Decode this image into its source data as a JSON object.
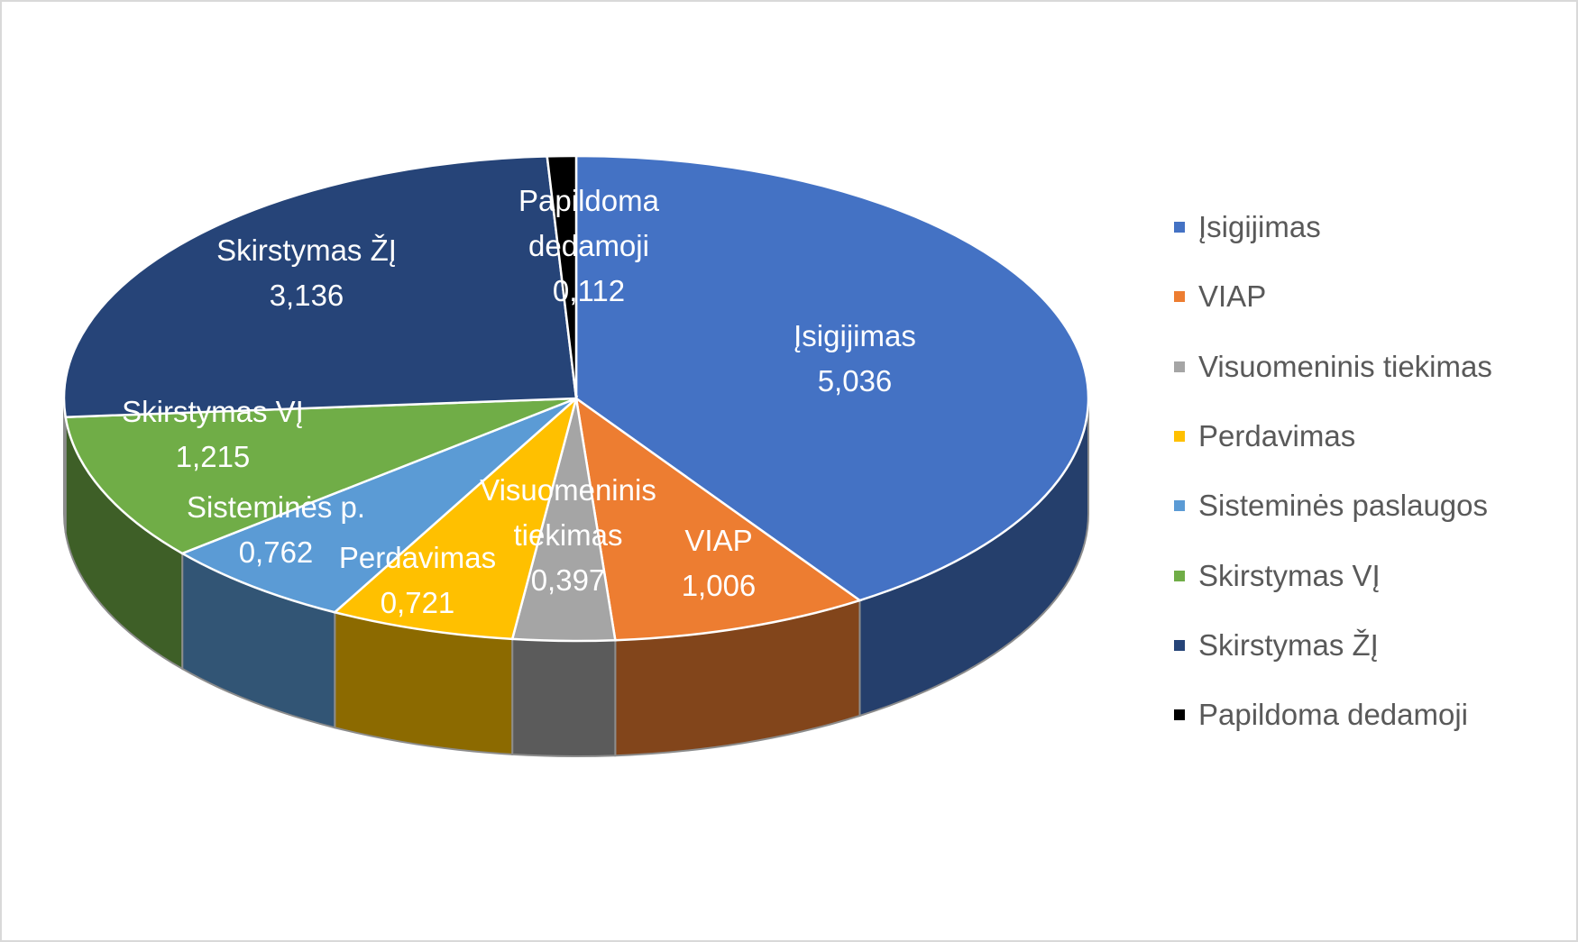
{
  "chart_data": {
    "type": "pie3d",
    "categories": [
      "Įsigijimas",
      "VIAP",
      "Visuomeninis tiekimas",
      "Perdavimas",
      "Sisteminės paslaugos",
      "Skirstymas VĮ",
      "Skirstymas ŽĮ",
      "Papildoma dedamoji"
    ],
    "slice_labels": [
      "Įsigijimas",
      "VIAP",
      "Visuomeninis tiekimas",
      "Perdavimas",
      "Sisteminės p.",
      "Skirstymas VĮ",
      "Skirstymas ŽĮ",
      "Papildoma dedamoji"
    ],
    "values": [
      5.036,
      1.006,
      0.397,
      0.721,
      0.762,
      1.215,
      3.136,
      0.112
    ],
    "value_labels": [
      "5,036",
      "1,006",
      "0,397",
      "0,721",
      "0,762",
      "1,215",
      "3,136",
      "0,112"
    ],
    "colors": [
      "#4472c4",
      "#ed7d31",
      "#a5a5a5",
      "#ffc000",
      "#5b9bd5",
      "#70ad47",
      "#264478",
      "#000000"
    ],
    "legend": "right"
  }
}
